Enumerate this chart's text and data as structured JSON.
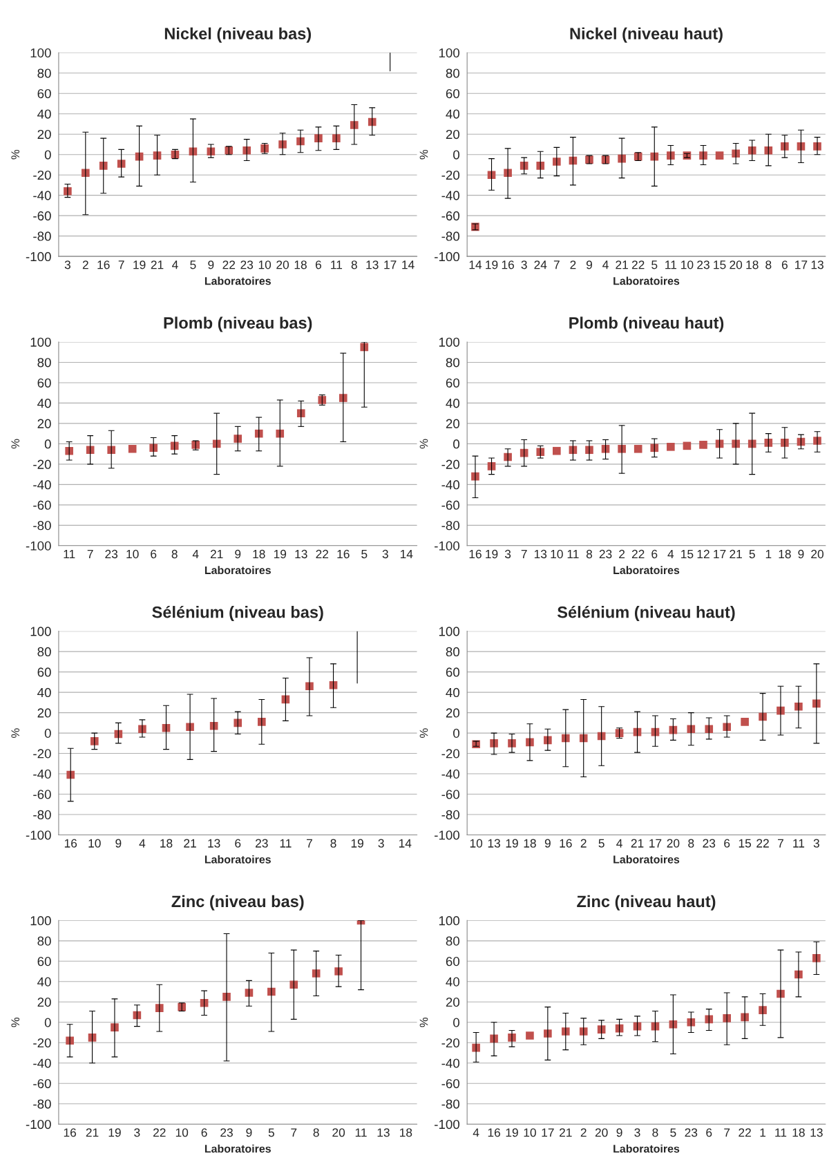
{
  "chart_data": [
    {
      "type": "scatter",
      "title": "Nickel (niveau bas)",
      "xlabel": "Laboratoires",
      "ylabel": "%",
      "color": "#c0504d",
      "marker": "square",
      "grid": "y",
      "ylim": [
        -100,
        100
      ],
      "yticks": [
        -100,
        -80,
        -60,
        -40,
        -20,
        0,
        20,
        40,
        60,
        80,
        100
      ],
      "categories": [
        "3",
        "2",
        "16",
        "7",
        "19",
        "21",
        "4",
        "5",
        "9",
        "22",
        "23",
        "10",
        "20",
        "18",
        "6",
        "11",
        "8",
        "13",
        "17",
        "14"
      ],
      "values": [
        -36,
        -18,
        -11,
        -9,
        -2,
        -1,
        0,
        3,
        3,
        4,
        4,
        6,
        10,
        13,
        16,
        16,
        29,
        32,
        null,
        null
      ],
      "errors": [
        [
          -42,
          -29
        ],
        [
          -59,
          22
        ],
        [
          -38,
          16
        ],
        [
          -22,
          5
        ],
        [
          -31,
          28
        ],
        [
          -20,
          19
        ],
        [
          -4,
          5
        ],
        [
          -27,
          35
        ],
        [
          -3,
          10
        ],
        [
          0,
          8
        ],
        [
          -6,
          15
        ],
        [
          1,
          11
        ],
        [
          0,
          21
        ],
        [
          2,
          24
        ],
        [
          4,
          27
        ],
        [
          5,
          28
        ],
        [
          10,
          49
        ],
        [
          19,
          46
        ],
        null,
        null
      ],
      "series": [
        {
          "type": "line",
          "color": "#000000",
          "marker": "none",
          "x": [
            "17",
            "17"
          ],
          "values": [
            82,
            100
          ]
        }
      ]
    },
    {
      "type": "scatter",
      "title": "Nickel (niveau haut)",
      "xlabel": "Laboratoires",
      "ylabel": "%",
      "color": "#c0504d",
      "marker": "square",
      "grid": "y",
      "ylim": [
        -100,
        100
      ],
      "yticks": [
        -100,
        -80,
        -60,
        -40,
        -20,
        0,
        20,
        40,
        60,
        80,
        100
      ],
      "categories": [
        "14",
        "19",
        "16",
        "3",
        "24",
        "7",
        "2",
        "9",
        "4",
        "21",
        "22",
        "5",
        "11",
        "10",
        "23",
        "15",
        "20",
        "18",
        "8",
        "6",
        "17",
        "13"
      ],
      "values": [
        -71,
        -20,
        -18,
        -11,
        -11,
        -7,
        -6,
        -5,
        -5,
        -4,
        -2,
        -2,
        -1,
        -1,
        -1,
        -1,
        1,
        4,
        4,
        8,
        8,
        8
      ],
      "errors": [
        [
          -74,
          -68
        ],
        [
          -35,
          -4
        ],
        [
          -43,
          6
        ],
        [
          -19,
          -3
        ],
        [
          -23,
          3
        ],
        [
          -21,
          7
        ],
        [
          -30,
          17
        ],
        [
          -9,
          -1
        ],
        [
          -9,
          -1
        ],
        [
          -23,
          16
        ],
        [
          -6,
          2
        ],
        [
          -31,
          27
        ],
        [
          -10,
          9
        ],
        [
          -3,
          1
        ],
        [
          -10,
          9
        ],
        null,
        [
          -9,
          11
        ],
        [
          -6,
          14
        ],
        [
          -11,
          20
        ],
        [
          -3,
          19
        ],
        [
          -8,
          24
        ],
        [
          0,
          17
        ]
      ]
    },
    {
      "type": "scatter",
      "title": "Plomb (niveau bas)",
      "xlabel": "Laboratoires",
      "ylabel": "%",
      "color": "#c0504d",
      "marker": "square",
      "grid": "y",
      "ylim": [
        -100,
        100
      ],
      "yticks": [
        -100,
        -80,
        -60,
        -40,
        -20,
        0,
        20,
        40,
        60,
        80,
        100
      ],
      "categories": [
        "11",
        "7",
        "23",
        "10",
        "6",
        "8",
        "4",
        "21",
        "9",
        "18",
        "19",
        "13",
        "22",
        "16",
        "5",
        "3",
        "14"
      ],
      "values": [
        -7,
        -6,
        -6,
        -5,
        -4,
        -2,
        -1,
        0,
        5,
        10,
        10,
        30,
        43,
        45,
        95,
        null,
        null
      ],
      "errors": [
        [
          -16,
          2
        ],
        [
          -20,
          8
        ],
        [
          -24,
          13
        ],
        null,
        [
          -12,
          6
        ],
        [
          -10,
          8
        ],
        [
          -6,
          3
        ],
        [
          -30,
          30
        ],
        [
          -7,
          17
        ],
        [
          -7,
          26
        ],
        [
          -22,
          43
        ],
        [
          17,
          42
        ],
        [
          38,
          48
        ],
        [
          2,
          89
        ],
        [
          36,
          100
        ],
        null,
        null
      ]
    },
    {
      "type": "scatter",
      "title": "Plomb (niveau haut)",
      "xlabel": "Laboratoires",
      "ylabel": "%",
      "color": "#c0504d",
      "marker": "square",
      "grid": "y",
      "ylim": [
        -100,
        100
      ],
      "yticks": [
        -100,
        -80,
        -60,
        -40,
        -20,
        0,
        20,
        40,
        60,
        80,
        100
      ],
      "categories": [
        "16",
        "19",
        "3",
        "7",
        "13",
        "10",
        "11",
        "8",
        "23",
        "2",
        "22",
        "6",
        "4",
        "15",
        "12",
        "17",
        "21",
        "5",
        "1",
        "18",
        "9",
        "20"
      ],
      "values": [
        -32,
        -22,
        -13,
        -9,
        -8,
        -7,
        -6,
        -6,
        -5,
        -5,
        -5,
        -4,
        -3,
        -2,
        -1,
        0,
        0,
        0,
        1,
        1,
        2,
        3
      ],
      "errors": [
        [
          -53,
          -12
        ],
        [
          -30,
          -14
        ],
        [
          -22,
          -5
        ],
        [
          -22,
          4
        ],
        [
          -14,
          -2
        ],
        null,
        [
          -16,
          3
        ],
        [
          -16,
          3
        ],
        [
          -15,
          4
        ],
        [
          -29,
          18
        ],
        null,
        [
          -13,
          5
        ],
        null,
        null,
        null,
        [
          -14,
          14
        ],
        [
          -20,
          20
        ],
        [
          -30,
          30
        ],
        [
          -8,
          10
        ],
        [
          -14,
          16
        ],
        [
          -5,
          9
        ],
        [
          -8,
          12
        ]
      ]
    },
    {
      "type": "scatter",
      "title": "Sélénium (niveau bas)",
      "xlabel": "Laboratoires",
      "ylabel": "%",
      "color": "#c0504d",
      "marker": "square",
      "grid": "y",
      "ylim": [
        -100,
        100
      ],
      "yticks": [
        -100,
        -80,
        -60,
        -40,
        -20,
        0,
        20,
        40,
        60,
        80,
        100
      ],
      "categories": [
        "16",
        "10",
        "9",
        "4",
        "18",
        "21",
        "13",
        "6",
        "23",
        "11",
        "7",
        "8",
        "19",
        "3",
        "14"
      ],
      "values": [
        -41,
        -8,
        -1,
        4,
        5,
        6,
        7,
        10,
        11,
        33,
        46,
        47,
        null,
        null,
        null
      ],
      "errors": [
        [
          -67,
          -15
        ],
        [
          -16,
          0
        ],
        [
          -10,
          10
        ],
        [
          -4,
          13
        ],
        [
          -16,
          27
        ],
        [
          -26,
          38
        ],
        [
          -18,
          34
        ],
        [
          -1,
          21
        ],
        [
          -11,
          33
        ],
        [
          12,
          54
        ],
        [
          17,
          74
        ],
        [
          25,
          68
        ],
        null,
        null,
        null
      ],
      "series": [
        {
          "type": "line",
          "color": "#000000",
          "marker": "none",
          "x": [
            "19",
            "19"
          ],
          "values": [
            49,
            100
          ]
        }
      ]
    },
    {
      "type": "scatter",
      "title": "Sélénium (niveau haut)",
      "xlabel": "Laboratoires",
      "ylabel": "%",
      "color": "#c0504d",
      "marker": "square",
      "grid": "y",
      "ylim": [
        -100,
        100
      ],
      "yticks": [
        -100,
        -80,
        -60,
        -40,
        -20,
        0,
        20,
        40,
        60,
        80,
        100
      ],
      "categories": [
        "10",
        "13",
        "19",
        "18",
        "9",
        "16",
        "2",
        "5",
        "4",
        "21",
        "17",
        "20",
        "8",
        "23",
        "6",
        "15",
        "22",
        "7",
        "11",
        "3"
      ],
      "values": [
        -11,
        -10,
        -10,
        -9,
        -7,
        -5,
        -5,
        -3,
        0,
        1,
        1,
        3,
        4,
        4,
        6,
        11,
        16,
        22,
        26,
        29
      ],
      "errors": [
        [
          -13,
          -8
        ],
        [
          -21,
          0
        ],
        [
          -19,
          -1
        ],
        [
          -27,
          9
        ],
        [
          -17,
          4
        ],
        [
          -33,
          23
        ],
        [
          -43,
          33
        ],
        [
          -32,
          26
        ],
        [
          -5,
          5
        ],
        [
          -19,
          21
        ],
        [
          -13,
          17
        ],
        [
          -7,
          14
        ],
        [
          -12,
          20
        ],
        [
          -6,
          15
        ],
        [
          -4,
          17
        ],
        null,
        [
          -7,
          39
        ],
        [
          -2,
          46
        ],
        [
          5,
          46
        ],
        [
          -10,
          68
        ]
      ]
    },
    {
      "type": "scatter",
      "title": "Zinc (niveau bas)",
      "xlabel": "Laboratoires",
      "ylabel": "%",
      "color": "#c0504d",
      "marker": "square",
      "grid": "y",
      "ylim": [
        -100,
        100
      ],
      "yticks": [
        -100,
        -80,
        -60,
        -40,
        -20,
        0,
        20,
        40,
        60,
        80,
        100
      ],
      "categories": [
        "16",
        "21",
        "19",
        "3",
        "22",
        "10",
        "6",
        "23",
        "9",
        "5",
        "7",
        "8",
        "20",
        "11",
        "13",
        "18"
      ],
      "values": [
        -18,
        -15,
        -5,
        7,
        14,
        15,
        19,
        25,
        29,
        30,
        37,
        48,
        50,
        100,
        null,
        null
      ],
      "errors": [
        [
          -34,
          -2
        ],
        [
          -40,
          11
        ],
        [
          -34,
          23
        ],
        [
          -4,
          17
        ],
        [
          -9,
          37
        ],
        [
          11,
          19
        ],
        [
          7,
          31
        ],
        [
          -38,
          87
        ],
        [
          16,
          41
        ],
        [
          -9,
          68
        ],
        [
          3,
          71
        ],
        [
          26,
          70
        ],
        [
          35,
          66
        ],
        [
          32,
          100
        ],
        null,
        null
      ]
    },
    {
      "type": "scatter",
      "title": "Zinc (niveau haut)",
      "xlabel": "Laboratoires",
      "ylabel": "%",
      "color": "#c0504d",
      "marker": "square",
      "grid": "y",
      "ylim": [
        -100,
        100
      ],
      "yticks": [
        -100,
        -80,
        -60,
        -40,
        -20,
        0,
        20,
        40,
        60,
        80,
        100
      ],
      "categories": [
        "4",
        "16",
        "19",
        "10",
        "17",
        "21",
        "2",
        "20",
        "9",
        "3",
        "8",
        "5",
        "23",
        "6",
        "7",
        "22",
        "1",
        "11",
        "18",
        "13"
      ],
      "values": [
        -25,
        -16,
        -15,
        -13,
        -11,
        -9,
        -9,
        -7,
        -6,
        -4,
        -4,
        -2,
        0,
        3,
        4,
        5,
        12,
        28,
        47,
        63
      ],
      "errors": [
        [
          -39,
          -10
        ],
        [
          -33,
          0
        ],
        [
          -24,
          -8
        ],
        null,
        [
          -37,
          15
        ],
        [
          -27,
          9
        ],
        [
          -22,
          4
        ],
        [
          -16,
          2
        ],
        [
          -13,
          3
        ],
        [
          -13,
          6
        ],
        [
          -19,
          11
        ],
        [
          -31,
          27
        ],
        [
          -10,
          10
        ],
        [
          -8,
          13
        ],
        [
          -22,
          29
        ],
        [
          -16,
          25
        ],
        [
          -3,
          28
        ],
        [
          -15,
          71
        ],
        [
          25,
          69
        ],
        [
          47,
          79
        ]
      ]
    }
  ]
}
